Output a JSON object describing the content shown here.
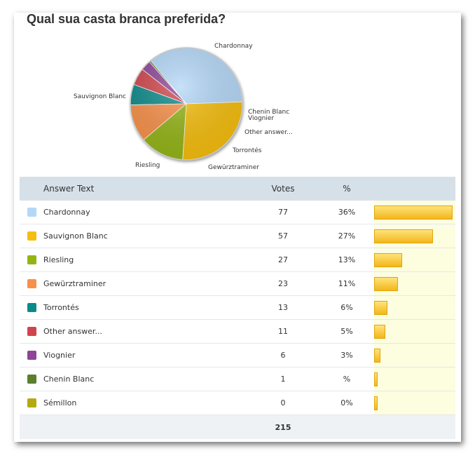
{
  "title": "Qual sua casta branca preferida?",
  "table": {
    "headers": {
      "answer": "Answer Text",
      "votes": "Votes",
      "percent": "%"
    },
    "total": "215"
  },
  "chart_data": {
    "type": "pie",
    "title": "Qual sua casta branca preferida?",
    "slices": [
      {
        "label": "Chardonnay",
        "votes": 77,
        "percent": "36%",
        "share": 0.36,
        "color": "#b4d7f7"
      },
      {
        "label": "Chenin Blanc",
        "votes": 1,
        "percent": "%",
        "share": 0.005,
        "color": "#5b7f2d"
      },
      {
        "label": "Viognier",
        "votes": 6,
        "percent": "3%",
        "share": 0.03,
        "color": "#8e4596"
      },
      {
        "label": "Other answer...",
        "votes": 11,
        "percent": "5%",
        "share": 0.05,
        "color": "#d0454c"
      },
      {
        "label": "Torrontés",
        "votes": 13,
        "percent": "6%",
        "share": 0.06,
        "color": "#0c8a8a"
      },
      {
        "label": "Gewürztraminer",
        "votes": 23,
        "percent": "11%",
        "share": 0.11,
        "color": "#f7904a"
      },
      {
        "label": "Riesling",
        "votes": 27,
        "percent": "13%",
        "share": 0.13,
        "color": "#94b414"
      },
      {
        "label": "Sauvignon Blanc",
        "votes": 57,
        "percent": "27%",
        "share": 0.27,
        "color": "#f5bd0f"
      }
    ]
  },
  "rows": [
    {
      "label": "Chardonnay",
      "votes": "77",
      "percent": "36%",
      "fraction": 0.36,
      "color": "#b4d7f7"
    },
    {
      "label": "Sauvignon Blanc",
      "votes": "57",
      "percent": "27%",
      "fraction": 0.27,
      "color": "#f5bd0f"
    },
    {
      "label": "Riesling",
      "votes": "27",
      "percent": "13%",
      "fraction": 0.13,
      "color": "#94b414"
    },
    {
      "label": "Gewürztraminer",
      "votes": "23",
      "percent": "11%",
      "fraction": 0.11,
      "color": "#f7904a"
    },
    {
      "label": "Torrontés",
      "votes": "13",
      "percent": "6%",
      "fraction": 0.06,
      "color": "#0c8a8a"
    },
    {
      "label": "Other answer...",
      "votes": "11",
      "percent": "5%",
      "fraction": 0.05,
      "color": "#d0454c"
    },
    {
      "label": "Viognier",
      "votes": "6",
      "percent": "3%",
      "fraction": 0.03,
      "color": "#8e4596"
    },
    {
      "label": "Chenin Blanc",
      "votes": "1",
      "percent": "%",
      "fraction": 0.005,
      "color": "#5b7f2d"
    },
    {
      "label": "Sémillon",
      "votes": "0",
      "percent": "0%",
      "fraction": 0.0,
      "color": "#b4a90e"
    }
  ]
}
